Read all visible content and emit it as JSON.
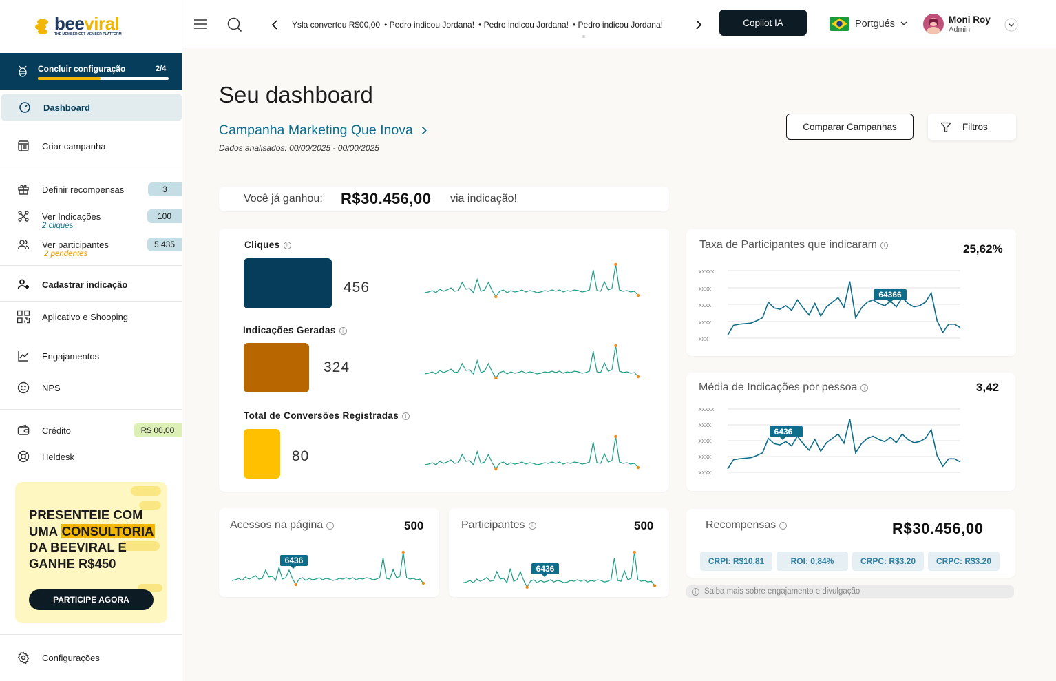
{
  "brand": {
    "name_a": "bee",
    "name_b": "viral",
    "tagline": "THE MEMBER GET MEMBER PLATFORM"
  },
  "setup": {
    "label": "Concluir configuração",
    "count": "2/4",
    "progress": 0.48
  },
  "nav": {
    "dashboard": "Dashboard",
    "criar": "Criar campanha",
    "recompensas": "Definir recompensas",
    "recompensas_badge": "3",
    "indicacoes": "Ver Indicações",
    "indicacoes_badge": "100",
    "indicacoes_sub": "2 cliques",
    "participantes": "Ver participantes",
    "participantes_badge": "5.435",
    "participantes_sub": "2 pendentes",
    "cadastrar": "Cadastrar indicação",
    "aplicativo": "Aplicativo e Shooping",
    "engajamentos": "Engajamentos",
    "nps": "NPS",
    "credito": "Crédito",
    "credito_badge": "R$ 00,00",
    "heldesk": "Heldesk",
    "config": "Configurações"
  },
  "promo": {
    "line1": "PRESENTEIE COM",
    "line2a": "UMA ",
    "line2b": "CONSULTORIA",
    "line3": "DA BEEVIRAL E",
    "line4": "GANHE R$450",
    "button": "PARTICIPE AGORA"
  },
  "topbar": {
    "ticker": [
      "Ysla converteu R$00,00",
      "• Pedro indicou Jordana!",
      "• Pedro indicou Jordana!",
      "• Pedro indicou Jordana!"
    ],
    "copilot": "Copilot IA",
    "language": "Portgués",
    "user_name": "Moni Roy",
    "user_role": "Admin"
  },
  "page": {
    "title": "Seu dashboard",
    "campaign": "Campanha Marketing Que Inova",
    "period": "Dados analisados: 00/00/2025 - 00/00/2025",
    "compare": "Comparar Campanhas",
    "filters": "Filtros"
  },
  "earned": {
    "prefix": "Você já ganhou:",
    "value": "R$30.456,00",
    "suffix": "via indicação!"
  },
  "metrics": [
    {
      "title": "Cliques",
      "value": "456",
      "color": "#063d5b"
    },
    {
      "title": "Indicações Geradas",
      "value": "324",
      "color": "#b86600"
    },
    {
      "title": "Total de Conversões Registradas",
      "value": "80",
      "color": "#ffc000"
    }
  ],
  "rate": {
    "title": "Taxa de Participantes que indicaram",
    "value": "25,62%",
    "tooltip": "64366",
    "ylabels": [
      "xxxxx",
      "xxxx",
      "xxxx",
      "xxxx",
      "xxx"
    ]
  },
  "avg": {
    "title": "Média de Indicações por pessoa",
    "value": "3,42",
    "tooltip": "6436",
    "ylabels": [
      "xxxxx",
      "xxxx",
      "xxxx",
      "xxxx",
      "xxxx"
    ]
  },
  "access": {
    "title": "Acessos na página",
    "value": "500",
    "tooltip": "6436"
  },
  "participants": {
    "title": "Participantes",
    "value": "500",
    "tooltip": "6436"
  },
  "rewards": {
    "title": "Recompensas",
    "value": "R$30.456,00",
    "kpis": [
      "CRPI: R$10,81",
      "ROI: 0,84%",
      "CRPC: R$3.20",
      "CRPC: R$3.20"
    ],
    "note": "Saiba mais sobre engajamento e divulgação"
  },
  "colors": {
    "primary": "#063d5b",
    "accent": "#f2b705",
    "line": "#1f9e86",
    "line2": "#0e6d8a",
    "point": "#f28c1a"
  }
}
